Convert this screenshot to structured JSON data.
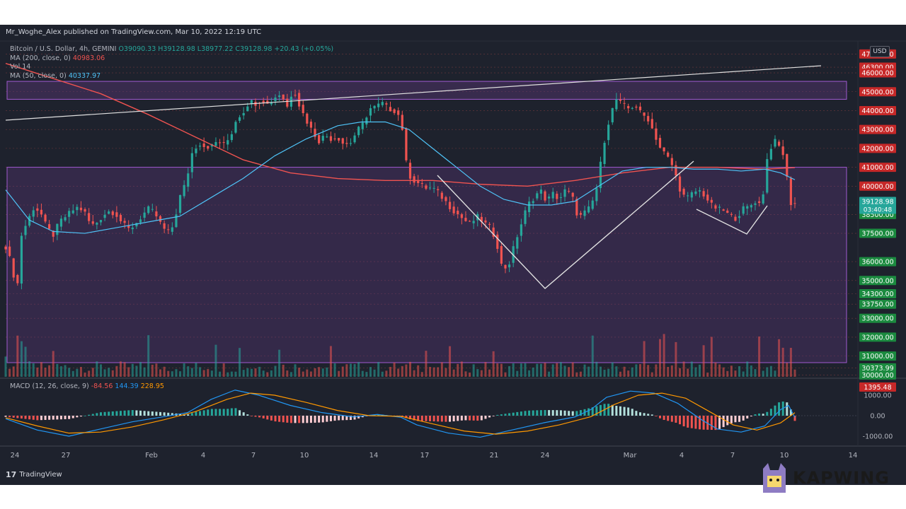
{
  "header": {
    "published": "Mr_Woghe_Alex published on TradingView.com, Mar 10, 2022 12:19 UTC"
  },
  "legend": {
    "symbol": "Bitcoin / U.S. Dollar, 4h, GEMINI",
    "ohlc": "O39090.33 H39128.98 L38977.22 C39128.98 +20.43 (+0.05%)",
    "ma200_label": "MA (200, close, 0)",
    "ma200_value": "40983.06",
    "vol_label": "Vol",
    "vol_value": "14",
    "ma50_label": "MA (50, close, 0)",
    "ma50_value": "40337.97"
  },
  "macd_legend": {
    "label": "MACD (12, 26, close, 9)",
    "v1": "-84.56",
    "v2": "144.39",
    "v3": "228.95"
  },
  "currency": "USD",
  "footer": {
    "brand": "TradingView"
  },
  "watermark": "KAPWING",
  "colors": {
    "background": "#1e222d",
    "up": "#26a69a",
    "down": "#ef5350",
    "ma200": "#ef5350",
    "ma50": "#4fc3f7",
    "trendline": "#e0e0e0",
    "zone": "#6a3d8a",
    "macd_line": "#2196f3",
    "signal_line": "#ff9800"
  },
  "chart_data": [
    {
      "type": "candlestick",
      "title": "Bitcoin / U.S. Dollar, 4h, GEMINI",
      "ylim": [
        29900,
        47500
      ],
      "y_ticks": [
        "47000.00",
        "46300.00",
        "46000.00",
        "45000.00",
        "44000.00",
        "43000.00",
        "42000.00",
        "41000.00",
        "40000.00",
        "39000.00",
        "38500.00",
        "37500.00",
        "36000.00",
        "35000.00",
        "34300.00",
        "33750.00",
        "33000.00",
        "32000.00",
        "31000.00",
        "30373.99",
        "30000.00"
      ],
      "x_ticks": [
        "24",
        "27",
        "Feb",
        "4",
        "7",
        "10",
        "14",
        "17",
        "21",
        "24",
        "Mar",
        "4",
        "7",
        "10",
        "14"
      ],
      "current_price": "39128.98",
      "countdown": "03:40:48",
      "close_path": [
        [
          0,
          36800
        ],
        [
          8,
          35800
        ],
        [
          14,
          34300
        ],
        [
          20,
          37400
        ],
        [
          28,
          38200
        ],
        [
          36,
          38900
        ],
        [
          44,
          38600
        ],
        [
          52,
          37800
        ],
        [
          60,
          37400
        ],
        [
          68,
          38100
        ],
        [
          76,
          38400
        ],
        [
          84,
          38700
        ],
        [
          92,
          38900
        ],
        [
          100,
          38600
        ],
        [
          108,
          37900
        ],
        [
          116,
          38100
        ],
        [
          124,
          38500
        ],
        [
          132,
          38700
        ],
        [
          140,
          38500
        ],
        [
          148,
          38000
        ],
        [
          156,
          37700
        ],
        [
          164,
          38000
        ],
        [
          172,
          38400
        ],
        [
          180,
          38800
        ],
        [
          188,
          38600
        ],
        [
          196,
          38000
        ],
        [
          204,
          37500
        ],
        [
          212,
          37900
        ],
        [
          220,
          39400
        ],
        [
          228,
          40200
        ],
        [
          236,
          41800
        ],
        [
          244,
          42300
        ],
        [
          252,
          42100
        ],
        [
          260,
          42100
        ],
        [
          268,
          42400
        ],
        [
          276,
          42200
        ],
        [
          284,
          42600
        ],
        [
          292,
          43600
        ],
        [
          300,
          43900
        ],
        [
          308,
          44500
        ],
        [
          316,
          44400
        ],
        [
          324,
          44600
        ],
        [
          332,
          44300
        ],
        [
          340,
          44700
        ],
        [
          348,
          44900
        ],
        [
          356,
          44200
        ],
        [
          364,
          45200
        ],
        [
          372,
          44200
        ],
        [
          380,
          43500
        ],
        [
          388,
          42900
        ],
        [
          396,
          42400
        ],
        [
          404,
          42700
        ],
        [
          412,
          42500
        ],
        [
          420,
          42600
        ],
        [
          428,
          42200
        ],
        [
          436,
          42300
        ],
        [
          444,
          42900
        ],
        [
          452,
          43300
        ],
        [
          460,
          44100
        ],
        [
          468,
          44200
        ],
        [
          476,
          44400
        ],
        [
          484,
          44100
        ],
        [
          492,
          44000
        ],
        [
          500,
          43600
        ],
        [
          508,
          40700
        ],
        [
          516,
          40300
        ],
        [
          524,
          40100
        ],
        [
          532,
          39900
        ],
        [
          540,
          39900
        ],
        [
          548,
          39600
        ],
        [
          556,
          39200
        ],
        [
          564,
          38800
        ],
        [
          572,
          38500
        ],
        [
          580,
          38200
        ],
        [
          588,
          38000
        ],
        [
          596,
          38400
        ],
        [
          604,
          38100
        ],
        [
          612,
          37800
        ],
        [
          620,
          37200
        ],
        [
          628,
          35600
        ],
        [
          636,
          35800
        ],
        [
          644,
          37000
        ],
        [
          652,
          38000
        ],
        [
          660,
          39000
        ],
        [
          668,
          39400
        ],
        [
          676,
          39800
        ],
        [
          684,
          39200
        ],
        [
          692,
          39600
        ],
        [
          700,
          39300
        ],
        [
          708,
          39800
        ],
        [
          716,
          39500
        ],
        [
          724,
          38300
        ],
        [
          732,
          38600
        ],
        [
          740,
          38900
        ],
        [
          748,
          40000
        ],
        [
          756,
          42200
        ],
        [
          764,
          43700
        ],
        [
          772,
          44600
        ],
        [
          780,
          44300
        ],
        [
          788,
          44100
        ],
        [
          796,
          44300
        ],
        [
          804,
          43800
        ],
        [
          812,
          43600
        ],
        [
          820,
          42800
        ],
        [
          828,
          42000
        ],
        [
          836,
          41600
        ],
        [
          844,
          41000
        ],
        [
          852,
          39900
        ],
        [
          860,
          39300
        ],
        [
          868,
          39600
        ],
        [
          876,
          39800
        ],
        [
          884,
          39500
        ],
        [
          892,
          39000
        ],
        [
          900,
          38800
        ],
        [
          908,
          38700
        ],
        [
          916,
          38400
        ],
        [
          924,
          38300
        ],
        [
          932,
          38800
        ],
        [
          940,
          38900
        ],
        [
          948,
          39200
        ],
        [
          956,
          39000
        ],
        [
          964,
          41800
        ],
        [
          972,
          42400
        ],
        [
          980,
          42000
        ],
        [
          986,
          41400
        ],
        [
          990,
          39400
        ],
        [
          994,
          39000
        ],
        [
          998,
          39100
        ]
      ],
      "ma200": [
        [
          0,
          46500
        ],
        [
          60,
          45700
        ],
        [
          120,
          44900
        ],
        [
          180,
          43800
        ],
        [
          240,
          42600
        ],
        [
          300,
          41400
        ],
        [
          360,
          40700
        ],
        [
          420,
          40400
        ],
        [
          480,
          40300
        ],
        [
          540,
          40300
        ],
        [
          600,
          40100
        ],
        [
          660,
          40000
        ],
        [
          720,
          40300
        ],
        [
          780,
          40700
        ],
        [
          840,
          41000
        ],
        [
          900,
          41000
        ],
        [
          960,
          40900
        ],
        [
          998,
          40983
        ]
      ],
      "ma50": [
        [
          0,
          39800
        ],
        [
          30,
          38200
        ],
        [
          60,
          37600
        ],
        [
          100,
          37500
        ],
        [
          140,
          37800
        ],
        [
          180,
          38100
        ],
        [
          220,
          38400
        ],
        [
          260,
          39400
        ],
        [
          300,
          40400
        ],
        [
          340,
          41600
        ],
        [
          380,
          42500
        ],
        [
          420,
          43200
        ],
        [
          450,
          43400
        ],
        [
          480,
          43400
        ],
        [
          510,
          43000
        ],
        [
          540,
          42000
        ],
        [
          570,
          41000
        ],
        [
          600,
          40000
        ],
        [
          630,
          39300
        ],
        [
          660,
          39000
        ],
        [
          690,
          39000
        ],
        [
          720,
          39200
        ],
        [
          750,
          40000
        ],
        [
          780,
          40800
        ],
        [
          810,
          41000
        ],
        [
          840,
          41000
        ],
        [
          870,
          40900
        ],
        [
          900,
          40900
        ],
        [
          930,
          40800
        ],
        [
          960,
          40900
        ],
        [
          980,
          40700
        ],
        [
          998,
          40338
        ]
      ]
    },
    {
      "type": "histogram",
      "title": "MACD (12, 26, close, 9)",
      "ylim": [
        -1400,
        1800
      ],
      "y_ticks": [
        "1395.48",
        "1000.00",
        "0.00",
        "-1000.00"
      ],
      "macd": [
        [
          0,
          -150
        ],
        [
          40,
          -700
        ],
        [
          80,
          -1000
        ],
        [
          120,
          -650
        ],
        [
          160,
          -300
        ],
        [
          200,
          -50
        ],
        [
          230,
          150
        ],
        [
          260,
          800
        ],
        [
          290,
          1250
        ],
        [
          320,
          1000
        ],
        [
          360,
          500
        ],
        [
          400,
          150
        ],
        [
          440,
          -60
        ],
        [
          470,
          60
        ],
        [
          500,
          -80
        ],
        [
          520,
          -450
        ],
        [
          560,
          -850
        ],
        [
          600,
          -1050
        ],
        [
          640,
          -700
        ],
        [
          680,
          -350
        ],
        [
          720,
          -60
        ],
        [
          740,
          300
        ],
        [
          760,
          900
        ],
        [
          790,
          1200
        ],
        [
          820,
          1100
        ],
        [
          850,
          600
        ],
        [
          880,
          -200
        ],
        [
          900,
          -650
        ],
        [
          930,
          -800
        ],
        [
          960,
          -500
        ],
        [
          980,
          300
        ],
        [
          990,
          500
        ],
        [
          998,
          -85
        ]
      ],
      "signal": [
        [
          0,
          -100
        ],
        [
          40,
          -500
        ],
        [
          80,
          -850
        ],
        [
          120,
          -800
        ],
        [
          160,
          -550
        ],
        [
          200,
          -200
        ],
        [
          240,
          200
        ],
        [
          280,
          800
        ],
        [
          310,
          1100
        ],
        [
          340,
          1000
        ],
        [
          380,
          650
        ],
        [
          420,
          250
        ],
        [
          460,
          0
        ],
        [
          500,
          -30
        ],
        [
          540,
          -400
        ],
        [
          580,
          -750
        ],
        [
          620,
          -900
        ],
        [
          660,
          -750
        ],
        [
          700,
          -450
        ],
        [
          740,
          -50
        ],
        [
          770,
          550
        ],
        [
          800,
          1000
        ],
        [
          830,
          1100
        ],
        [
          860,
          850
        ],
        [
          890,
          200
        ],
        [
          920,
          -450
        ],
        [
          950,
          -700
        ],
        [
          980,
          -350
        ],
        [
          998,
          145
        ]
      ]
    }
  ]
}
